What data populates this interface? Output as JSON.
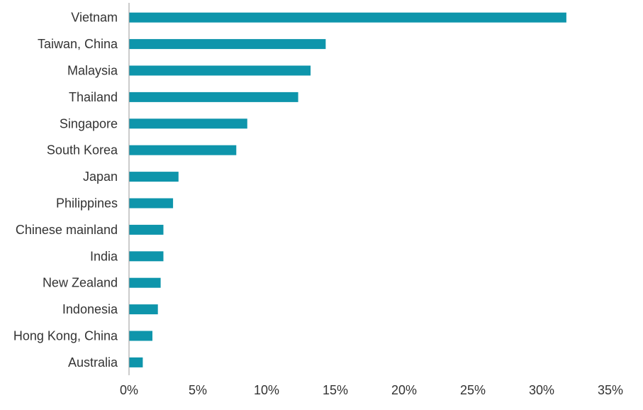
{
  "colors": {
    "bar": "#0e95ab",
    "axis": "#999999",
    "text": "#333333",
    "background": "#ffffff"
  },
  "chart_data": {
    "type": "bar",
    "orientation": "horizontal",
    "title": "",
    "xlabel": "",
    "ylabel": "",
    "categories": [
      "Vietnam",
      "Taiwan, China",
      "Malaysia",
      "Thailand",
      "Singapore",
      "South Korea",
      "Japan",
      "Philippines",
      "Chinese mainland",
      "India",
      "New Zealand",
      "Indonesia",
      "Hong Kong, China",
      "Australia"
    ],
    "values": [
      31.8,
      14.3,
      13.2,
      12.3,
      8.6,
      7.8,
      3.6,
      3.2,
      2.5,
      2.5,
      2.3,
      2.1,
      1.7,
      1.0
    ],
    "unit": "%",
    "xlim": [
      0,
      35
    ],
    "x_ticks": [
      0,
      5,
      10,
      15,
      20,
      25,
      30,
      35
    ],
    "x_tick_labels": [
      "0%",
      "5%",
      "10%",
      "15%",
      "20%",
      "25%",
      "30%",
      "35%"
    ],
    "grid": false,
    "legend": "none"
  }
}
